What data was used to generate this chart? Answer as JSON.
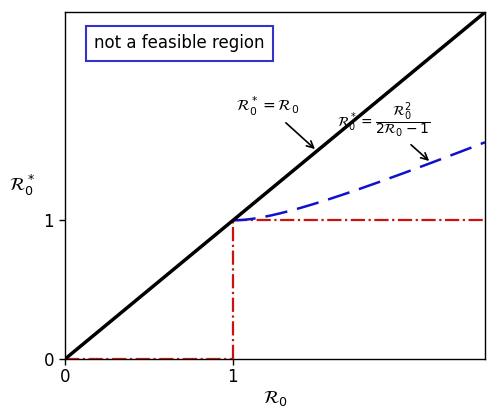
{
  "title": "",
  "xlabel": "$\\mathcal{R}_0$",
  "ylabel": "$\\mathcal{R}_0^*$",
  "xlim": [
    0,
    2.5
  ],
  "ylim": [
    0,
    2.5
  ],
  "xticks": [
    0,
    1
  ],
  "yticks": [
    0,
    1
  ],
  "diagonal_label": "$\\mathcal{R}_0^* = \\mathcal{R}_0$",
  "curve_label": "$\\mathcal{R}_0^* = \\dfrac{\\mathcal{R}_0^2}{2\\mathcal{R}_0-1}$",
  "box_text": "not a feasible region",
  "black_line_color": "#000000",
  "blue_dashed_color": "#1111cc",
  "red_dashdot_color": "#cc1111",
  "box_edge_color": "#3333cc",
  "figsize": [
    5.0,
    4.08
  ],
  "dpi": 100
}
